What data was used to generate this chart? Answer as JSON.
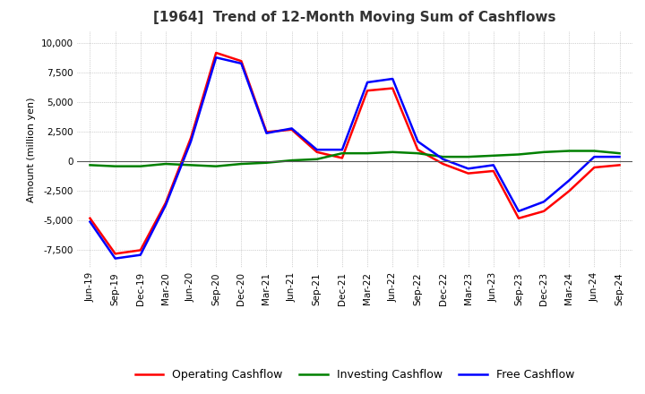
{
  "title": "[1964]  Trend of 12-Month Moving Sum of Cashflows",
  "ylabel": "Amount (million yen)",
  "background_color": "#ffffff",
  "grid_color": "#aaaaaa",
  "x_labels": [
    "Jun-19",
    "Sep-19",
    "Dec-19",
    "Mar-20",
    "Jun-20",
    "Sep-20",
    "Dec-20",
    "Mar-21",
    "Jun-21",
    "Sep-21",
    "Dec-21",
    "Mar-22",
    "Jun-22",
    "Sep-22",
    "Dec-22",
    "Mar-23",
    "Jun-23",
    "Sep-23",
    "Dec-23",
    "Mar-24",
    "Jun-24",
    "Sep-24"
  ],
  "operating_cashflow": [
    -4800,
    -7800,
    -7500,
    -3500,
    2000,
    9200,
    8500,
    2500,
    2700,
    800,
    300,
    6000,
    6200,
    1000,
    -200,
    -1000,
    -800,
    -4800,
    -4200,
    -2500,
    -500,
    -300
  ],
  "investing_cashflow": [
    -300,
    -400,
    -400,
    -200,
    -300,
    -400,
    -200,
    -100,
    100,
    200,
    700,
    700,
    800,
    700,
    400,
    400,
    500,
    600,
    800,
    900,
    900,
    700
  ],
  "free_cashflow": [
    -5100,
    -8200,
    -7900,
    -3700,
    1700,
    8800,
    8300,
    2400,
    2800,
    1000,
    1000,
    6700,
    7000,
    1700,
    200,
    -600,
    -300,
    -4200,
    -3400,
    -1600,
    400,
    400
  ],
  "operating_color": "#ff0000",
  "investing_color": "#008000",
  "free_color": "#0000ff",
  "ylim_min": -9000,
  "ylim_max": 11000,
  "yticks": [
    -7500,
    -5000,
    -2500,
    0,
    2500,
    5000,
    7500,
    10000
  ],
  "line_width": 1.8,
  "title_fontsize": 11,
  "label_fontsize": 8,
  "tick_fontsize": 7.5
}
